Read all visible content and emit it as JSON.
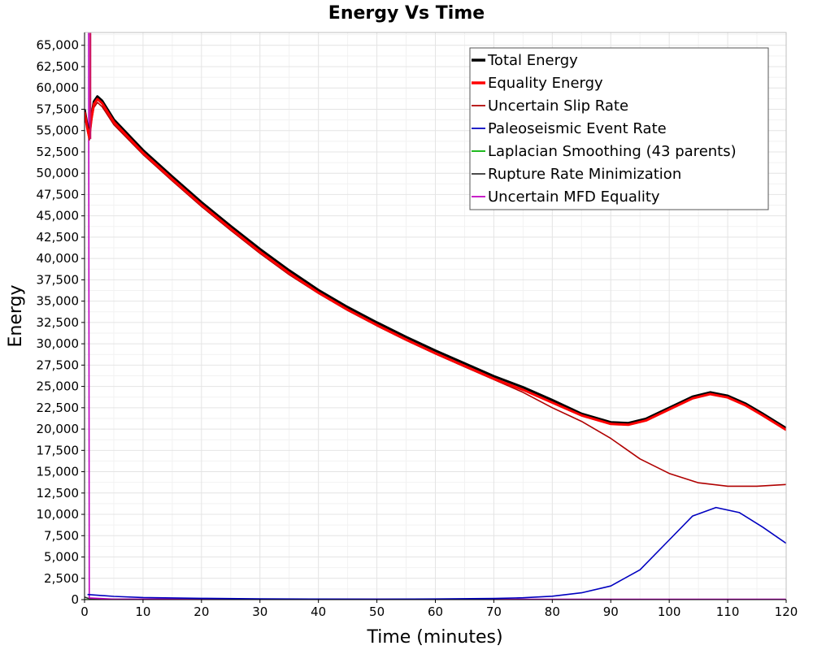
{
  "chart_data": {
    "type": "line",
    "title": "Energy Vs Time",
    "xlabel": "Time (minutes)",
    "ylabel": "Energy",
    "xlim": [
      0,
      120
    ],
    "ylim": [
      0,
      66500
    ],
    "x_ticks": [
      "0",
      "10",
      "20",
      "30",
      "40",
      "50",
      "60",
      "70",
      "80",
      "90",
      "100",
      "110",
      "120"
    ],
    "y_ticks": [
      "0",
      "2,500",
      "5,000",
      "7,500",
      "10,000",
      "12,500",
      "15,000",
      "17,500",
      "20,000",
      "22,500",
      "25,000",
      "27,500",
      "30,000",
      "32,500",
      "35,000",
      "37,500",
      "40,000",
      "42,500",
      "45,000",
      "47,500",
      "50,000",
      "52,500",
      "55,000",
      "57,500",
      "60,000",
      "62,500",
      "65,000"
    ],
    "grid": true,
    "legend_position": "top-right",
    "series": [
      {
        "name": "Total Energy",
        "color": "#000000",
        "points": [
          [
            0,
            57500
          ],
          [
            0.5,
            55500
          ],
          [
            0.8,
            54500
          ],
          [
            1.2,
            56800
          ],
          [
            1.6,
            58400
          ],
          [
            2.2,
            59000
          ],
          [
            3,
            58500
          ],
          [
            5,
            56300
          ],
          [
            10,
            52700
          ],
          [
            15,
            49600
          ],
          [
            20,
            46600
          ],
          [
            25,
            43800
          ],
          [
            30,
            41100
          ],
          [
            35,
            38600
          ],
          [
            40,
            36300
          ],
          [
            45,
            34300
          ],
          [
            50,
            32500
          ],
          [
            55,
            30800
          ],
          [
            60,
            29200
          ],
          [
            65,
            27700
          ],
          [
            70,
            26200
          ],
          [
            75,
            24900
          ],
          [
            80,
            23400
          ],
          [
            85,
            21800
          ],
          [
            90,
            20800
          ],
          [
            93,
            20700
          ],
          [
            96,
            21200
          ],
          [
            100,
            22500
          ],
          [
            104,
            23800
          ],
          [
            107,
            24300
          ],
          [
            110,
            23900
          ],
          [
            113,
            23000
          ],
          [
            116,
            21800
          ],
          [
            120,
            20100
          ]
        ]
      },
      {
        "name": "Equality Energy",
        "color": "#ff0000",
        "points": [
          [
            0,
            57200
          ],
          [
            0.5,
            55200
          ],
          [
            0.8,
            54200
          ],
          [
            1.2,
            56500
          ],
          [
            1.6,
            58100
          ],
          [
            2.2,
            58700
          ],
          [
            3,
            58200
          ],
          [
            5,
            56000
          ],
          [
            10,
            52400
          ],
          [
            15,
            49300
          ],
          [
            20,
            46300
          ],
          [
            25,
            43500
          ],
          [
            30,
            40800
          ],
          [
            35,
            38300
          ],
          [
            40,
            36000
          ],
          [
            45,
            34000
          ],
          [
            50,
            32200
          ],
          [
            55,
            30500
          ],
          [
            60,
            28900
          ],
          [
            65,
            27400
          ],
          [
            70,
            25900
          ],
          [
            75,
            24600
          ],
          [
            80,
            23100
          ],
          [
            85,
            21600
          ],
          [
            90,
            20600
          ],
          [
            93,
            20500
          ],
          [
            96,
            21000
          ],
          [
            100,
            22300
          ],
          [
            104,
            23600
          ],
          [
            107,
            24100
          ],
          [
            110,
            23700
          ],
          [
            113,
            22800
          ],
          [
            116,
            21600
          ],
          [
            120,
            19900
          ]
        ]
      },
      {
        "name": "Uncertain Slip Rate",
        "color": "#b00000",
        "points": [
          [
            0,
            56800
          ],
          [
            0.5,
            54900
          ],
          [
            0.8,
            53900
          ],
          [
            1.2,
            56100
          ],
          [
            1.6,
            57700
          ],
          [
            2.2,
            58300
          ],
          [
            3,
            57800
          ],
          [
            5,
            55700
          ],
          [
            10,
            52200
          ],
          [
            15,
            49100
          ],
          [
            20,
            46100
          ],
          [
            25,
            43300
          ],
          [
            30,
            40600
          ],
          [
            35,
            38100
          ],
          [
            40,
            35900
          ],
          [
            45,
            33900
          ],
          [
            50,
            32100
          ],
          [
            55,
            30400
          ],
          [
            60,
            28800
          ],
          [
            65,
            27300
          ],
          [
            70,
            25800
          ],
          [
            75,
            24300
          ],
          [
            80,
            22500
          ],
          [
            85,
            20900
          ],
          [
            90,
            18900
          ],
          [
            95,
            16500
          ],
          [
            100,
            14800
          ],
          [
            105,
            13700
          ],
          [
            110,
            13300
          ],
          [
            115,
            13300
          ],
          [
            120,
            13500
          ]
        ]
      },
      {
        "name": "Paleoseismic Event Rate",
        "color": "#0000c0",
        "points": [
          [
            0.5,
            600
          ],
          [
            5,
            380
          ],
          [
            10,
            250
          ],
          [
            20,
            150
          ],
          [
            30,
            100
          ],
          [
            40,
            70
          ],
          [
            50,
            60
          ],
          [
            60,
            80
          ],
          [
            70,
            130
          ],
          [
            75,
            220
          ],
          [
            80,
            400
          ],
          [
            85,
            800
          ],
          [
            90,
            1600
          ],
          [
            95,
            3500
          ],
          [
            100,
            7000
          ],
          [
            104,
            9800
          ],
          [
            108,
            10800
          ],
          [
            112,
            10200
          ],
          [
            116,
            8500
          ],
          [
            120,
            6600
          ]
        ]
      },
      {
        "name": "Laplacian Smoothing (43 parents)",
        "color": "#00b000",
        "points": [
          [
            0,
            0
          ],
          [
            120,
            0
          ]
        ]
      },
      {
        "name": "Rupture Rate Minimization",
        "color": "#333333",
        "points": [
          [
            0,
            300
          ],
          [
            1,
            80
          ],
          [
            5,
            40
          ],
          [
            20,
            20
          ],
          [
            120,
            10
          ]
        ]
      },
      {
        "name": "Uncertain MFD Equality",
        "color": "#c000c0",
        "points": [
          [
            0.7,
            66500
          ],
          [
            0.8,
            200
          ],
          [
            5,
            60
          ],
          [
            120,
            40
          ]
        ]
      }
    ],
    "spike": {
      "x_left": 0.85,
      "x_right": 1.15,
      "color": "#cc1060"
    }
  }
}
